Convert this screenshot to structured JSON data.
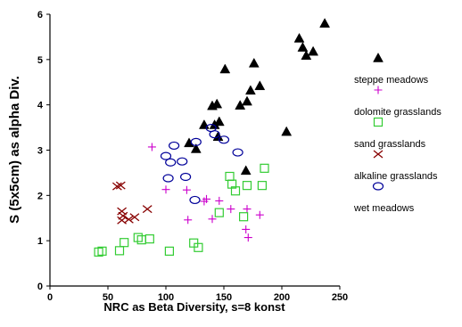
{
  "chart_data": {
    "type": "scatter",
    "title": "",
    "xlabel": "NRC as Beta Diversity, s=8 konst",
    "ylabel": "S (5x5cm) as alpha Div.",
    "xlim": [
      0,
      250
    ],
    "ylim": [
      0,
      6
    ],
    "xticks": [
      "0",
      "50",
      "100",
      "150",
      "200",
      "250"
    ],
    "yticks": [
      "0",
      "1",
      "2",
      "3",
      "4",
      "5",
      "6"
    ],
    "grid": false,
    "legend_position": "right",
    "series": [
      {
        "name": "steppe meadows",
        "marker": "filled-triangle",
        "color": "#000000",
        "points": [
          [
            237,
            5.8
          ],
          [
            215,
            5.47
          ],
          [
            218,
            5.27
          ],
          [
            221,
            5.09
          ],
          [
            227,
            5.18
          ],
          [
            176,
            4.92
          ],
          [
            151,
            4.79
          ],
          [
            181,
            4.42
          ],
          [
            173,
            4.32
          ],
          [
            144,
            4.02
          ],
          [
            140,
            3.98
          ],
          [
            170,
            4.08
          ],
          [
            164,
            3.99
          ],
          [
            146,
            3.63
          ],
          [
            133,
            3.56
          ],
          [
            142,
            3.56
          ],
          [
            145,
            3.3
          ],
          [
            120,
            3.16
          ],
          [
            204,
            3.41
          ],
          [
            126,
            3.03
          ],
          [
            169,
            2.55
          ]
        ]
      },
      {
        "name": "dolomite grasslands",
        "marker": "plus",
        "color": "#cc00cc",
        "points": [
          [
            88,
            3.07
          ],
          [
            100,
            2.13
          ],
          [
            118,
            2.12
          ],
          [
            119,
            1.46
          ],
          [
            133,
            1.87
          ],
          [
            135,
            1.92
          ],
          [
            140,
            1.48
          ],
          [
            146,
            1.88
          ],
          [
            156,
            1.7
          ],
          [
            170,
            1.7
          ],
          [
            169,
            1.25
          ],
          [
            171,
            1.07
          ],
          [
            181,
            1.57
          ]
        ]
      },
      {
        "name": "sand grasslands",
        "marker": "open-square",
        "color": "#33cc33",
        "points": [
          [
            42,
            0.75
          ],
          [
            45,
            0.77
          ],
          [
            60,
            0.78
          ],
          [
            64,
            0.96
          ],
          [
            76,
            1.07
          ],
          [
            79,
            1.02
          ],
          [
            86,
            1.04
          ],
          [
            103,
            0.77
          ],
          [
            124,
            0.95
          ],
          [
            128,
            0.85
          ],
          [
            146,
            1.62
          ],
          [
            155,
            2.42
          ],
          [
            157,
            2.25
          ],
          [
            160,
            2.1
          ],
          [
            167,
            1.53
          ],
          [
            170,
            2.22
          ],
          [
            183,
            2.22
          ],
          [
            185,
            2.6
          ]
        ]
      },
      {
        "name": "alkaline grasslands",
        "marker": "x",
        "color": "#880000",
        "points": [
          [
            58,
            2.2
          ],
          [
            61,
            2.22
          ],
          [
            62,
            1.65
          ],
          [
            63,
            1.55
          ],
          [
            62,
            1.45
          ],
          [
            68,
            1.47
          ],
          [
            73,
            1.52
          ],
          [
            84,
            1.7
          ]
        ]
      },
      {
        "name": "wet meadows",
        "marker": "open-ellipse",
        "color": "#000099",
        "points": [
          [
            100,
            2.87
          ],
          [
            102,
            2.38
          ],
          [
            104,
            2.73
          ],
          [
            107,
            3.1
          ],
          [
            114,
            2.75
          ],
          [
            117,
            2.41
          ],
          [
            126,
            3.18
          ],
          [
            125,
            1.9
          ],
          [
            139,
            3.49
          ],
          [
            142,
            3.35
          ],
          [
            150,
            3.23
          ],
          [
            162,
            2.95
          ]
        ]
      }
    ]
  }
}
